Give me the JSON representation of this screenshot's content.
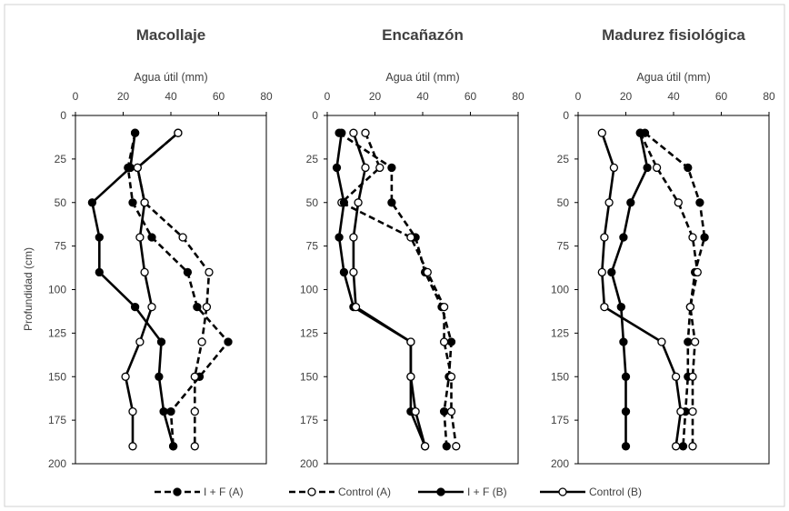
{
  "chart_data": {
    "type": "line",
    "x_axis_label": "Agua útil (mm)",
    "y_axis_label": "Profundidad (cm)",
    "x_ticks": [
      "0",
      "20",
      "40",
      "60",
      "80"
    ],
    "y_ticks": [
      "0",
      "25",
      "50",
      "75",
      "100",
      "125",
      "150",
      "175",
      "200"
    ],
    "xlim": [
      0,
      80
    ],
    "ylim": [
      0,
      200
    ],
    "y_inverted": true,
    "x_axis_position": "top",
    "depths": [
      10,
      30,
      50,
      70,
      90,
      110,
      130,
      150,
      170,
      190
    ],
    "legend": [
      {
        "label": "I + F (A)",
        "style": "dashed",
        "marker": "filled"
      },
      {
        "label": "Control (A)",
        "style": "dashed",
        "marker": "open"
      },
      {
        "label": "I + F (B)",
        "style": "solid",
        "marker": "filled"
      },
      {
        "label": "Control (B)",
        "style": "solid",
        "marker": "open"
      }
    ],
    "panels": [
      {
        "title": "Macollaje",
        "series": [
          {
            "label": "I + F (A)",
            "values": [
              25,
              22,
              24,
              32,
              47,
              51,
              64,
              52,
              40,
              41
            ]
          },
          {
            "label": "Control (A)",
            "values": [
              43,
              26,
              29,
              45,
              56,
              55,
              53,
              50,
              50,
              50
            ]
          },
          {
            "label": "I + F (B)",
            "values": [
              25,
              23,
              7,
              10,
              10,
              25,
              36,
              35,
              37,
              41
            ]
          },
          {
            "label": "Control (B)",
            "values": [
              43,
              26,
              29,
              27,
              29,
              32,
              27,
              21,
              24,
              24
            ]
          }
        ]
      },
      {
        "title": "Encañazón",
        "series": [
          {
            "label": "I + F (A)",
            "values": [
              5,
              27,
              27,
              37,
              41,
              48,
              52,
              51,
              49,
              50
            ]
          },
          {
            "label": "Control (A)",
            "values": [
              16,
              22,
              6,
              35,
              42,
              49,
              49,
              52,
              52,
              54
            ]
          },
          {
            "label": "I + F (B)",
            "values": [
              6,
              4,
              7,
              5,
              7,
              11,
              35,
              35,
              35,
              41
            ]
          },
          {
            "label": "Control (B)",
            "values": [
              11,
              16,
              13,
              11,
              11,
              12,
              35,
              35,
              37,
              41
            ]
          }
        ]
      },
      {
        "title": "Madurez fisiológica",
        "series": [
          {
            "label": "I + F (A)",
            "values": [
              28,
              46,
              51,
              53,
              49,
              47,
              46,
              46,
              45,
              44
            ]
          },
          {
            "label": "Control (A)",
            "values": [
              26,
              33,
              42,
              48,
              50,
              47,
              49,
              48,
              48,
              48
            ]
          },
          {
            "label": "I + F (B)",
            "values": [
              26,
              29,
              22,
              19,
              14,
              18,
              19,
              20,
              20,
              20
            ]
          },
          {
            "label": "Control (B)",
            "values": [
              10,
              15,
              13,
              11,
              10,
              11,
              35,
              41,
              43,
              41
            ]
          }
        ]
      }
    ]
  }
}
